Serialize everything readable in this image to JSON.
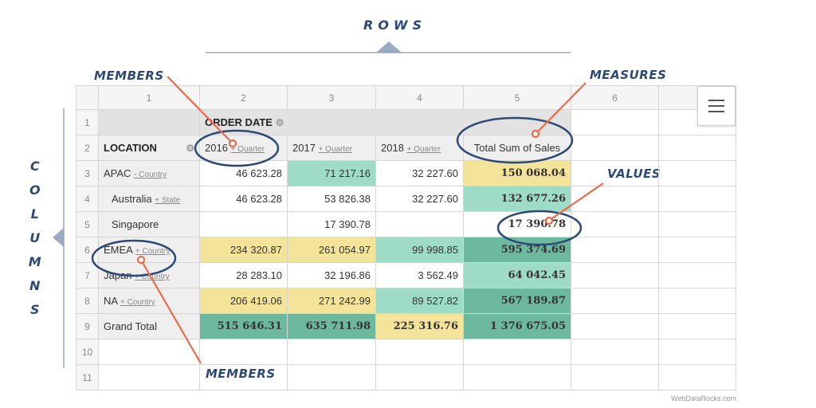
{
  "annotations": {
    "rows": "ROWS",
    "columns": [
      "C",
      "O",
      "L",
      "U",
      "M",
      "N",
      "S"
    ],
    "members_top": "MEMBERS",
    "members_bottom": "MEMBERS",
    "measures": "MEASURES",
    "values": "VALUES"
  },
  "colors": {
    "annotation_text": "#2c4a78",
    "arrow": "#f06a4a",
    "yellow_cell": "#f4e49a",
    "mint_cell": "#9fdcc8",
    "green_cell": "#6db99f"
  },
  "grid": {
    "column_numbers": [
      "1",
      "2",
      "3",
      "4",
      "5",
      "6"
    ],
    "row_numbers": [
      "1",
      "2",
      "3",
      "4",
      "5",
      "6",
      "7",
      "8",
      "9",
      "10",
      "11"
    ],
    "order_date": "ORDER DATE",
    "location": "LOCATION",
    "expand_quarter": "+ Quarter",
    "years": [
      "2016",
      "2017",
      "2018"
    ],
    "measure": "Total Sum of Sales",
    "rows": [
      {
        "label": "APAC",
        "link": "- Country",
        "values": [
          "46 623.28",
          "71 217.16",
          "32 227.60",
          "150 068.04"
        ]
      },
      {
        "label": "Australia",
        "link": "+ State",
        "values": [
          "46 623.28",
          "53 826.38",
          "32 227.60",
          "132 677.26"
        ]
      },
      {
        "label": "Singapore",
        "link": "",
        "values": [
          "",
          "17 390.78",
          "",
          "17 390.78"
        ]
      },
      {
        "label": "EMEA",
        "link": "+ Country",
        "values": [
          "234 320.87",
          "261 054.97",
          "99 998.85",
          "595 374.69"
        ]
      },
      {
        "label": "Japan",
        "link": "+ Country",
        "values": [
          "28 283.10",
          "32 196.86",
          "3 562.49",
          "64 042.45"
        ]
      },
      {
        "label": "NA",
        "link": "+ Country",
        "values": [
          "206 419.06",
          "271 242.99",
          "89 527.82",
          "567 189.87"
        ]
      },
      {
        "label": "Grand Total",
        "link": "",
        "values": [
          "515 646.31",
          "635 711.98",
          "225 316.76",
          "1 376 675.05"
        ]
      }
    ]
  },
  "credit": "WebDataRocks.com",
  "icons": {
    "menu": "hamburger-menu-icon",
    "settings": "gear-icon"
  }
}
